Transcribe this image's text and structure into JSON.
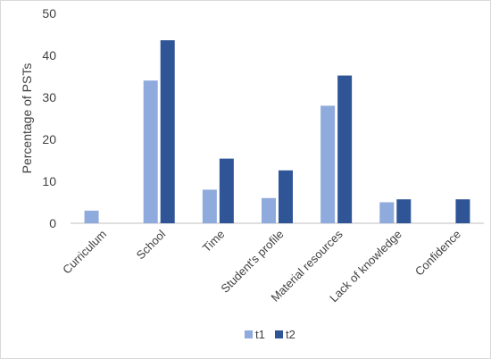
{
  "chart_data": {
    "type": "bar",
    "title": "",
    "xlabel": "",
    "ylabel": "Percentage of PSTs",
    "ylim": [
      0,
      50
    ],
    "yticks": [
      0,
      10,
      20,
      30,
      40,
      50
    ],
    "grid": false,
    "legend_position": "bottom",
    "categories": [
      "Curriculum",
      "School",
      "Time",
      "Student's profile",
      "Material resources",
      "Lack of knowledge",
      "Confidence"
    ],
    "series": [
      {
        "name": "t1",
        "color": "#8faadc",
        "values": [
          3,
          34,
          8,
          6,
          28,
          5,
          0
        ]
      },
      {
        "name": "t2",
        "color": "#2f5597",
        "values": [
          0,
          43.6,
          15.4,
          12.6,
          35.2,
          5.7,
          5.7
        ]
      }
    ]
  }
}
